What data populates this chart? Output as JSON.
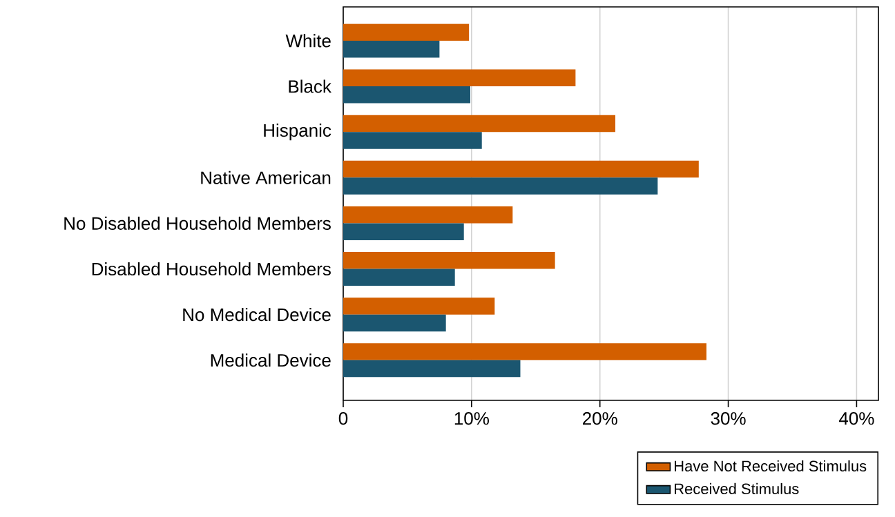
{
  "chart_data": {
    "type": "bar",
    "orientation": "horizontal",
    "categories": [
      "White",
      "Black",
      "Hispanic",
      "Native American",
      "No Disabled Household Members",
      "Disabled Household Members",
      "No Medical Device",
      "Medical Device"
    ],
    "series": [
      {
        "name": "Have Not Received Stimulus",
        "color": "#d35f00",
        "values": [
          9.8,
          18.1,
          21.2,
          27.7,
          13.2,
          16.5,
          11.8,
          28.3
        ]
      },
      {
        "name": "Received Stimulus",
        "color": "#1b5670",
        "values": [
          7.5,
          9.9,
          10.8,
          24.5,
          9.4,
          8.7,
          8.0,
          13.8
        ]
      }
    ],
    "xlim": [
      0,
      41.7
    ],
    "xticks": [
      0,
      {
        "value": 10,
        "label": "10%"
      },
      {
        "value": 20,
        "label": "20%"
      },
      {
        "value": 30,
        "label": "30%"
      },
      {
        "value": 40,
        "label": "40%"
      }
    ],
    "grid": "x",
    "legend": "bottom right"
  }
}
